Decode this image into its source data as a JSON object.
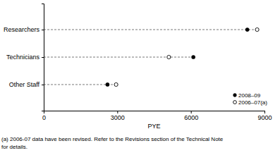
{
  "chart_data": {
    "type": "dot",
    "orientation": "horizontal",
    "x_label": "PYE",
    "categories": [
      "Researchers",
      "Technicians",
      "Other Staff"
    ],
    "series": [
      {
        "name": "2008–09",
        "color": "#000000",
        "marker": "circle",
        "values": [
          8300,
          6100,
          2600
        ]
      },
      {
        "name": "2006–07(a)",
        "color": "#000000",
        "marker": "open-circle",
        "values": [
          8700,
          5100,
          2950
        ]
      }
    ],
    "xlim": [
      0,
      9000
    ],
    "xticks": [
      0,
      3000,
      6000,
      9000
    ],
    "legend": "lower right",
    "annotations": [
      "(a) 2006-07 data have been revised. Refer to the Revisions section of the Technical Note",
      "for details."
    ]
  }
}
